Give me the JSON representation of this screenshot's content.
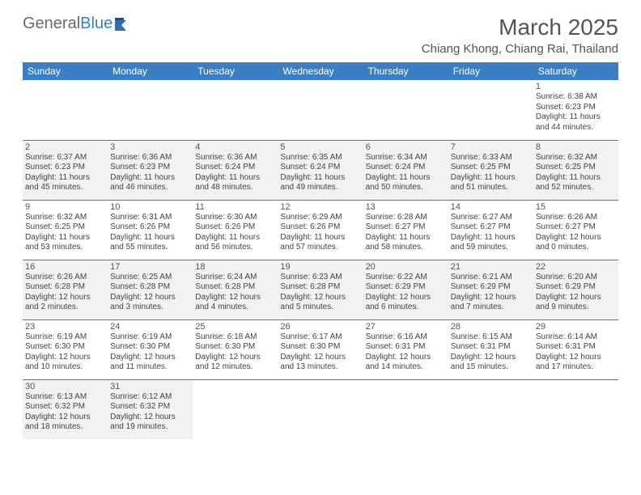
{
  "logo": {
    "text1": "General",
    "text2": "Blue"
  },
  "title": "March 2025",
  "location": "Chiang Khong, Chiang Rai, Thailand",
  "colors": {
    "header_bg": "#3a7fc4",
    "header_text": "#ffffff",
    "border": "#3a7fc4",
    "shaded_row": "#f2f2f2",
    "text": "#444444",
    "title_text": "#555555"
  },
  "weekdays": [
    "Sunday",
    "Monday",
    "Tuesday",
    "Wednesday",
    "Thursday",
    "Friday",
    "Saturday"
  ],
  "weeks": [
    {
      "shaded": false,
      "days": [
        null,
        null,
        null,
        null,
        null,
        null,
        {
          "n": "1",
          "sr": "Sunrise: 6:38 AM",
          "ss": "Sunset: 6:23 PM",
          "dl": "Daylight: 11 hours and 44 minutes."
        }
      ]
    },
    {
      "shaded": true,
      "days": [
        {
          "n": "2",
          "sr": "Sunrise: 6:37 AM",
          "ss": "Sunset: 6:23 PM",
          "dl": "Daylight: 11 hours and 45 minutes."
        },
        {
          "n": "3",
          "sr": "Sunrise: 6:36 AM",
          "ss": "Sunset: 6:23 PM",
          "dl": "Daylight: 11 hours and 46 minutes."
        },
        {
          "n": "4",
          "sr": "Sunrise: 6:36 AM",
          "ss": "Sunset: 6:24 PM",
          "dl": "Daylight: 11 hours and 48 minutes."
        },
        {
          "n": "5",
          "sr": "Sunrise: 6:35 AM",
          "ss": "Sunset: 6:24 PM",
          "dl": "Daylight: 11 hours and 49 minutes."
        },
        {
          "n": "6",
          "sr": "Sunrise: 6:34 AM",
          "ss": "Sunset: 6:24 PM",
          "dl": "Daylight: 11 hours and 50 minutes."
        },
        {
          "n": "7",
          "sr": "Sunrise: 6:33 AM",
          "ss": "Sunset: 6:25 PM",
          "dl": "Daylight: 11 hours and 51 minutes."
        },
        {
          "n": "8",
          "sr": "Sunrise: 6:32 AM",
          "ss": "Sunset: 6:25 PM",
          "dl": "Daylight: 11 hours and 52 minutes."
        }
      ]
    },
    {
      "shaded": false,
      "days": [
        {
          "n": "9",
          "sr": "Sunrise: 6:32 AM",
          "ss": "Sunset: 6:25 PM",
          "dl": "Daylight: 11 hours and 53 minutes."
        },
        {
          "n": "10",
          "sr": "Sunrise: 6:31 AM",
          "ss": "Sunset: 6:26 PM",
          "dl": "Daylight: 11 hours and 55 minutes."
        },
        {
          "n": "11",
          "sr": "Sunrise: 6:30 AM",
          "ss": "Sunset: 6:26 PM",
          "dl": "Daylight: 11 hours and 56 minutes."
        },
        {
          "n": "12",
          "sr": "Sunrise: 6:29 AM",
          "ss": "Sunset: 6:26 PM",
          "dl": "Daylight: 11 hours and 57 minutes."
        },
        {
          "n": "13",
          "sr": "Sunrise: 6:28 AM",
          "ss": "Sunset: 6:27 PM",
          "dl": "Daylight: 11 hours and 58 minutes."
        },
        {
          "n": "14",
          "sr": "Sunrise: 6:27 AM",
          "ss": "Sunset: 6:27 PM",
          "dl": "Daylight: 11 hours and 59 minutes."
        },
        {
          "n": "15",
          "sr": "Sunrise: 6:26 AM",
          "ss": "Sunset: 6:27 PM",
          "dl": "Daylight: 12 hours and 0 minutes."
        }
      ]
    },
    {
      "shaded": true,
      "days": [
        {
          "n": "16",
          "sr": "Sunrise: 6:26 AM",
          "ss": "Sunset: 6:28 PM",
          "dl": "Daylight: 12 hours and 2 minutes."
        },
        {
          "n": "17",
          "sr": "Sunrise: 6:25 AM",
          "ss": "Sunset: 6:28 PM",
          "dl": "Daylight: 12 hours and 3 minutes."
        },
        {
          "n": "18",
          "sr": "Sunrise: 6:24 AM",
          "ss": "Sunset: 6:28 PM",
          "dl": "Daylight: 12 hours and 4 minutes."
        },
        {
          "n": "19",
          "sr": "Sunrise: 6:23 AM",
          "ss": "Sunset: 6:28 PM",
          "dl": "Daylight: 12 hours and 5 minutes."
        },
        {
          "n": "20",
          "sr": "Sunrise: 6:22 AM",
          "ss": "Sunset: 6:29 PM",
          "dl": "Daylight: 12 hours and 6 minutes."
        },
        {
          "n": "21",
          "sr": "Sunrise: 6:21 AM",
          "ss": "Sunset: 6:29 PM",
          "dl": "Daylight: 12 hours and 7 minutes."
        },
        {
          "n": "22",
          "sr": "Sunrise: 6:20 AM",
          "ss": "Sunset: 6:29 PM",
          "dl": "Daylight: 12 hours and 9 minutes."
        }
      ]
    },
    {
      "shaded": false,
      "days": [
        {
          "n": "23",
          "sr": "Sunrise: 6:19 AM",
          "ss": "Sunset: 6:30 PM",
          "dl": "Daylight: 12 hours and 10 minutes."
        },
        {
          "n": "24",
          "sr": "Sunrise: 6:19 AM",
          "ss": "Sunset: 6:30 PM",
          "dl": "Daylight: 12 hours and 11 minutes."
        },
        {
          "n": "25",
          "sr": "Sunrise: 6:18 AM",
          "ss": "Sunset: 6:30 PM",
          "dl": "Daylight: 12 hours and 12 minutes."
        },
        {
          "n": "26",
          "sr": "Sunrise: 6:17 AM",
          "ss": "Sunset: 6:30 PM",
          "dl": "Daylight: 12 hours and 13 minutes."
        },
        {
          "n": "27",
          "sr": "Sunrise: 6:16 AM",
          "ss": "Sunset: 6:31 PM",
          "dl": "Daylight: 12 hours and 14 minutes."
        },
        {
          "n": "28",
          "sr": "Sunrise: 6:15 AM",
          "ss": "Sunset: 6:31 PM",
          "dl": "Daylight: 12 hours and 15 minutes."
        },
        {
          "n": "29",
          "sr": "Sunrise: 6:14 AM",
          "ss": "Sunset: 6:31 PM",
          "dl": "Daylight: 12 hours and 17 minutes."
        }
      ]
    },
    {
      "shaded": true,
      "days": [
        {
          "n": "30",
          "sr": "Sunrise: 6:13 AM",
          "ss": "Sunset: 6:32 PM",
          "dl": "Daylight: 12 hours and 18 minutes."
        },
        {
          "n": "31",
          "sr": "Sunrise: 6:12 AM",
          "ss": "Sunset: 6:32 PM",
          "dl": "Daylight: 12 hours and 19 minutes."
        },
        null,
        null,
        null,
        null,
        null
      ]
    }
  ]
}
